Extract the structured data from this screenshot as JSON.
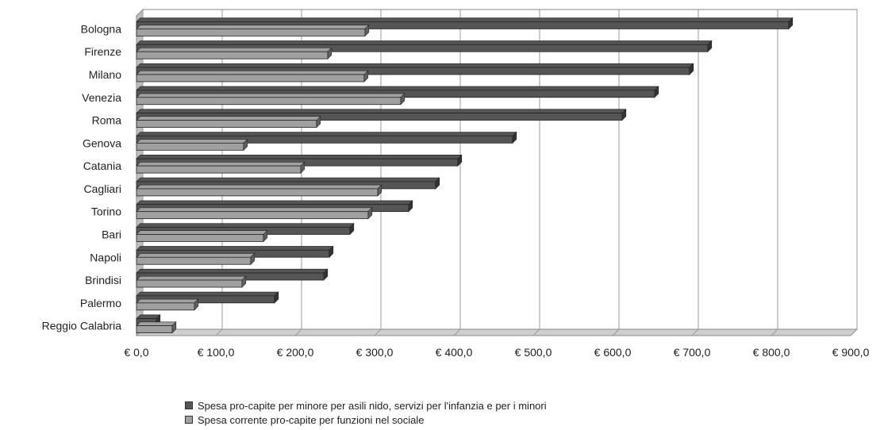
{
  "chart_data": {
    "type": "bar",
    "orientation": "horizontal",
    "title": "",
    "xlabel": "",
    "ylabel": "",
    "categories": [
      "Bologna",
      "Firenze",
      "Milano",
      "Venezia",
      "Roma",
      "Genova",
      "Catania",
      "Cagliari",
      "Torino",
      "Bari",
      "Napoli",
      "Brindisi",
      "Palermo",
      "Reggio Calabria"
    ],
    "series": [
      {
        "name": "Spesa pro-capite per minore per asili nido, servizi per l'infanzia e per i minori",
        "color": "#555555",
        "values": [
          822,
          720,
          697,
          653,
          612,
          474,
          405,
          377,
          343,
          269,
          243,
          236,
          174,
          25
        ]
      },
      {
        "name": "Spesa corrente pro-capite per funzioni nel sociale",
        "color": "#a0a0a0",
        "values": [
          288,
          241,
          287,
          333,
          227,
          135,
          207,
          304,
          292,
          160,
          144,
          133,
          73,
          45
        ]
      }
    ],
    "xlim": [
      0,
      900
    ],
    "xticks": [
      0,
      100,
      200,
      300,
      400,
      500,
      600,
      700,
      800,
      900
    ],
    "xtick_labels": [
      "€ 0,0",
      "€ 100,0",
      "€ 200,0",
      "€ 300,0",
      "€ 400,0",
      "€ 500,0",
      "€ 600,0",
      "€ 700,0",
      "€ 800,0",
      "€ 900,0"
    ],
    "grid": true,
    "legend_position": "bottom"
  }
}
